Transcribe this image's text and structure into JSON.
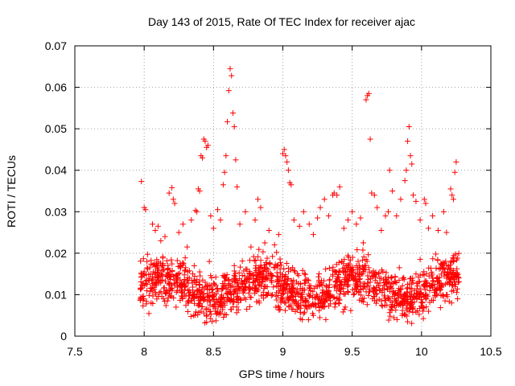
{
  "chart_data": {
    "type": "scatter",
    "title": "Day 143 of 2015, Rate Of TEC Index for receiver ajac",
    "xlabel": "GPS time / hours",
    "ylabel": "ROTI / TECUs",
    "xlim": [
      7.5,
      10.5
    ],
    "ylim": [
      0,
      0.07
    ],
    "xticks": [
      7.5,
      8,
      8.5,
      9,
      9.5,
      10,
      10.5
    ],
    "xtick_labels": [
      "7.5",
      "8",
      "8.5",
      "9",
      "9.5",
      "10",
      "10.5"
    ],
    "yticks": [
      0,
      0.01,
      0.02,
      0.03,
      0.04,
      0.05,
      0.06,
      0.07
    ],
    "ytick_labels": [
      "0",
      "0.01",
      "0.02",
      "0.03",
      "0.04",
      "0.05",
      "0.06",
      "0.07"
    ],
    "grid": true,
    "marker": "+",
    "color": "#ff0000",
    "series": [
      {
        "name": "ROTI",
        "points": [
          [
            7.98,
            0.0373
          ],
          [
            8.0,
            0.031
          ],
          [
            8.01,
            0.0305
          ],
          [
            8.02,
            0.018
          ],
          [
            8.04,
            0.0165
          ],
          [
            8.06,
            0.027
          ],
          [
            8.08,
            0.0255
          ],
          [
            8.1,
            0.0265
          ],
          [
            8.12,
            0.023
          ],
          [
            8.15,
            0.024
          ],
          [
            8.18,
            0.0345
          ],
          [
            8.2,
            0.0358
          ],
          [
            8.21,
            0.033
          ],
          [
            8.22,
            0.032
          ],
          [
            8.25,
            0.025
          ],
          [
            8.28,
            0.027
          ],
          [
            8.31,
            0.0215
          ],
          [
            8.34,
            0.028
          ],
          [
            8.37,
            0.0303
          ],
          [
            8.38,
            0.03
          ],
          [
            8.39,
            0.0355
          ],
          [
            8.4,
            0.035
          ],
          [
            8.41,
            0.0435
          ],
          [
            8.42,
            0.043
          ],
          [
            8.43,
            0.0475
          ],
          [
            8.44,
            0.047
          ],
          [
            8.45,
            0.0455
          ],
          [
            8.46,
            0.046
          ],
          [
            8.48,
            0.029
          ],
          [
            8.5,
            0.026
          ],
          [
            8.53,
            0.0305
          ],
          [
            8.55,
            0.028
          ],
          [
            8.57,
            0.0365
          ],
          [
            8.58,
            0.0395
          ],
          [
            8.59,
            0.0435
          ],
          [
            8.6,
            0.0517
          ],
          [
            8.61,
            0.0592
          ],
          [
            8.62,
            0.0645
          ],
          [
            8.63,
            0.0628
          ],
          [
            8.64,
            0.0538
          ],
          [
            8.65,
            0.0505
          ],
          [
            8.66,
            0.0425
          ],
          [
            8.67,
            0.036
          ],
          [
            8.69,
            0.027
          ],
          [
            8.73,
            0.03
          ],
          [
            8.77,
            0.0215
          ],
          [
            8.8,
            0.028
          ],
          [
            8.82,
            0.033
          ],
          [
            8.84,
            0.031
          ],
          [
            8.87,
            0.0225
          ],
          [
            8.9,
            0.0255
          ],
          [
            8.94,
            0.022
          ],
          [
            8.97,
            0.0245
          ],
          [
            9.0,
            0.044
          ],
          [
            9.01,
            0.045
          ],
          [
            9.02,
            0.0435
          ],
          [
            9.03,
            0.042
          ],
          [
            9.04,
            0.04
          ],
          [
            9.05,
            0.037
          ],
          [
            9.06,
            0.0365
          ],
          [
            9.08,
            0.028
          ],
          [
            9.12,
            0.0265
          ],
          [
            9.15,
            0.03
          ],
          [
            9.19,
            0.027
          ],
          [
            9.22,
            0.0245
          ],
          [
            9.25,
            0.0285
          ],
          [
            9.27,
            0.031
          ],
          [
            9.3,
            0.033
          ],
          [
            9.33,
            0.029
          ],
          [
            9.36,
            0.034
          ],
          [
            9.37,
            0.0345
          ],
          [
            9.39,
            0.034
          ],
          [
            9.41,
            0.036
          ],
          [
            9.44,
            0.026
          ],
          [
            9.47,
            0.028
          ],
          [
            9.5,
            0.03
          ],
          [
            9.53,
            0.027
          ],
          [
            9.56,
            0.0285
          ],
          [
            9.58,
            0.0225
          ],
          [
            9.6,
            0.057
          ],
          [
            9.61,
            0.058
          ],
          [
            9.62,
            0.0585
          ],
          [
            9.63,
            0.0475
          ],
          [
            9.64,
            0.0345
          ],
          [
            9.66,
            0.034
          ],
          [
            9.68,
            0.031
          ],
          [
            9.71,
            0.0255
          ],
          [
            9.74,
            0.029
          ],
          [
            9.76,
            0.03
          ],
          [
            9.77,
            0.04
          ],
          [
            9.79,
            0.035
          ],
          [
            9.82,
            0.029
          ],
          [
            9.85,
            0.033
          ],
          [
            9.88,
            0.0375
          ],
          [
            9.89,
            0.04
          ],
          [
            9.9,
            0.047
          ],
          [
            9.91,
            0.0505
          ],
          [
            9.92,
            0.0435
          ],
          [
            9.93,
            0.0415
          ],
          [
            9.94,
            0.034
          ],
          [
            9.96,
            0.0325
          ],
          [
            9.99,
            0.028
          ],
          [
            10.02,
            0.033
          ],
          [
            10.03,
            0.032
          ],
          [
            10.05,
            0.026
          ],
          [
            10.08,
            0.029
          ],
          [
            10.12,
            0.0255
          ],
          [
            10.16,
            0.03
          ],
          [
            10.18,
            0.025
          ],
          [
            10.21,
            0.0355
          ],
          [
            10.22,
            0.034
          ],
          [
            10.23,
            0.033
          ],
          [
            10.24,
            0.0395
          ],
          [
            10.25,
            0.042
          ],
          [
            7.99,
            0.0095
          ],
          [
            8.02,
            0.0125
          ],
          [
            8.05,
            0.008
          ],
          [
            8.08,
            0.014
          ],
          [
            8.11,
            0.0105
          ],
          [
            8.14,
            0.009
          ],
          [
            8.17,
            0.016
          ],
          [
            8.2,
            0.011
          ],
          [
            8.23,
            0.007
          ],
          [
            8.26,
            0.0135
          ],
          [
            8.29,
            0.012
          ],
          [
            8.32,
            0.0085
          ],
          [
            8.35,
            0.015
          ],
          [
            8.38,
            0.01
          ],
          [
            8.41,
            0.006
          ],
          [
            8.44,
            0.013
          ],
          [
            8.47,
            0.018
          ],
          [
            8.5,
            0.0095
          ],
          [
            8.53,
            0.0115
          ],
          [
            8.56,
            0.0075
          ],
          [
            8.59,
            0.014
          ],
          [
            8.62,
            0.0105
          ],
          [
            8.65,
            0.017
          ],
          [
            8.68,
            0.009
          ],
          [
            8.71,
            0.0125
          ],
          [
            8.74,
            0.0065
          ],
          [
            8.77,
            0.0145
          ],
          [
            8.8,
            0.011
          ],
          [
            8.83,
            0.008
          ],
          [
            8.86,
            0.0155
          ],
          [
            8.89,
            0.01
          ],
          [
            8.92,
            0.013
          ],
          [
            8.95,
            0.007
          ],
          [
            8.98,
            0.014
          ],
          [
            9.01,
            0.0115
          ],
          [
            9.04,
            0.009
          ],
          [
            9.07,
            0.0165
          ],
          [
            9.1,
            0.0105
          ],
          [
            9.13,
            0.0075
          ],
          [
            9.16,
            0.0135
          ],
          [
            9.19,
            0.0095
          ],
          [
            9.22,
            0.005
          ],
          [
            9.25,
            0.012
          ],
          [
            9.28,
            0.0085
          ],
          [
            9.31,
            0.004
          ],
          [
            9.33,
            0.011
          ],
          [
            9.36,
            0.0145
          ],
          [
            9.39,
            0.009
          ],
          [
            9.42,
            0.0125
          ],
          [
            9.45,
            0.007
          ],
          [
            9.48,
            0.014
          ],
          [
            9.51,
            0.01
          ],
          [
            9.54,
            0.016
          ],
          [
            9.57,
            0.0085
          ],
          [
            9.6,
            0.0185
          ],
          [
            9.63,
            0.013
          ],
          [
            9.66,
            0.0095
          ],
          [
            9.69,
            0.015
          ],
          [
            9.72,
            0.0115
          ],
          [
            9.75,
            0.0075
          ],
          [
            9.78,
            0.014
          ],
          [
            9.81,
            0.0105
          ],
          [
            9.84,
            0.0165
          ],
          [
            9.87,
            0.009
          ],
          [
            9.9,
            0.0125
          ],
          [
            9.93,
            0.007
          ],
          [
            9.96,
            0.015
          ],
          [
            9.99,
            0.0185
          ],
          [
            10.02,
            0.012
          ],
          [
            10.05,
            0.006
          ],
          [
            10.08,
            0.014
          ],
          [
            10.11,
            0.01
          ],
          [
            10.14,
            0.0175
          ],
          [
            10.17,
            0.0085
          ],
          [
            10.2,
            0.013
          ],
          [
            10.23,
            0.011
          ],
          [
            10.25,
            0.015
          ],
          [
            10.26,
            0.009
          ]
        ]
      }
    ]
  }
}
